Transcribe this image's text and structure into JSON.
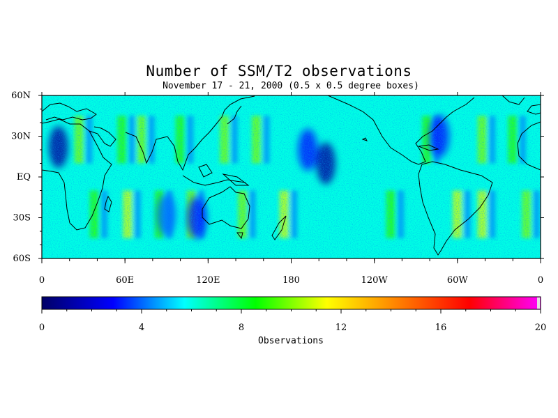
{
  "title": "Number of SSM/T2 observations",
  "subtitle": "November 17 - 21, 2000 (0.5 x 0.5 degree boxes)",
  "map": {
    "lon_range": [
      0,
      360
    ],
    "lat_range": [
      -60,
      60
    ],
    "lat_ticks": [
      {
        "value": 60,
        "label": "60N"
      },
      {
        "value": 30,
        "label": "30N"
      },
      {
        "value": 0,
        "label": "EQ"
      },
      {
        "value": -30,
        "label": "30S"
      },
      {
        "value": -60,
        "label": "60S"
      }
    ],
    "lon_ticks": [
      {
        "value": 0,
        "label": "0"
      },
      {
        "value": 60,
        "label": "60E"
      },
      {
        "value": 120,
        "label": "120E"
      },
      {
        "value": 180,
        "label": "180"
      },
      {
        "value": 240,
        "label": "120W"
      },
      {
        "value": 300,
        "label": "60W"
      },
      {
        "value": 360,
        "label": "0"
      }
    ],
    "background_level": 6,
    "swath_stripes": [
      {
        "lon": 27,
        "lat_band": "north",
        "level": 10
      },
      {
        "lon": 58,
        "lat_band": "north",
        "level": 9
      },
      {
        "lon": 72,
        "lat_band": "north",
        "level": 10
      },
      {
        "lon": 100,
        "lat_band": "north",
        "level": 9
      },
      {
        "lon": 132,
        "lat_band": "north",
        "level": 10
      },
      {
        "lon": 155,
        "lat_band": "north",
        "level": 10
      },
      {
        "lon": 278,
        "lat_band": "north",
        "level": 9
      },
      {
        "lon": 318,
        "lat_band": "north",
        "level": 10
      },
      {
        "lon": 340,
        "lat_band": "north",
        "level": 9
      },
      {
        "lon": 38,
        "lat_band": "south",
        "level": 9
      },
      {
        "lon": 62,
        "lat_band": "south",
        "level": 11
      },
      {
        "lon": 85,
        "lat_band": "south",
        "level": 9
      },
      {
        "lon": 108,
        "lat_band": "south",
        "level": 10
      },
      {
        "lon": 145,
        "lat_band": "south",
        "level": 10
      },
      {
        "lon": 175,
        "lat_band": "south",
        "level": 11
      },
      {
        "lon": 252,
        "lat_band": "south",
        "level": 9
      },
      {
        "lon": 300,
        "lat_band": "south",
        "level": 11
      },
      {
        "lon": 318,
        "lat_band": "south",
        "level": 11
      },
      {
        "lon": 350,
        "lat_band": "south",
        "level": 10
      }
    ],
    "low_regions": [
      {
        "lon": 12,
        "lat": 22,
        "level": 1
      },
      {
        "lon": 192,
        "lat": 20,
        "level": 3
      },
      {
        "lon": 205,
        "lat": 10,
        "level": 1
      },
      {
        "lon": 287,
        "lat": 30,
        "level": 3
      },
      {
        "lon": 112,
        "lat": -30,
        "level": 3
      },
      {
        "lon": 90,
        "lat": -28,
        "level": 4
      }
    ]
  },
  "colorbar": {
    "min": 0,
    "max": 20,
    "ticks": [
      "0",
      "4",
      "8",
      "12",
      "16",
      "20"
    ],
    "colors": [
      "#000066",
      "#0000ff",
      "#00ffff",
      "#00ff00",
      "#ffff00",
      "#ff8000",
      "#ff0000",
      "#ff00ff",
      "#e0e0e0"
    ],
    "label": "Observations"
  }
}
